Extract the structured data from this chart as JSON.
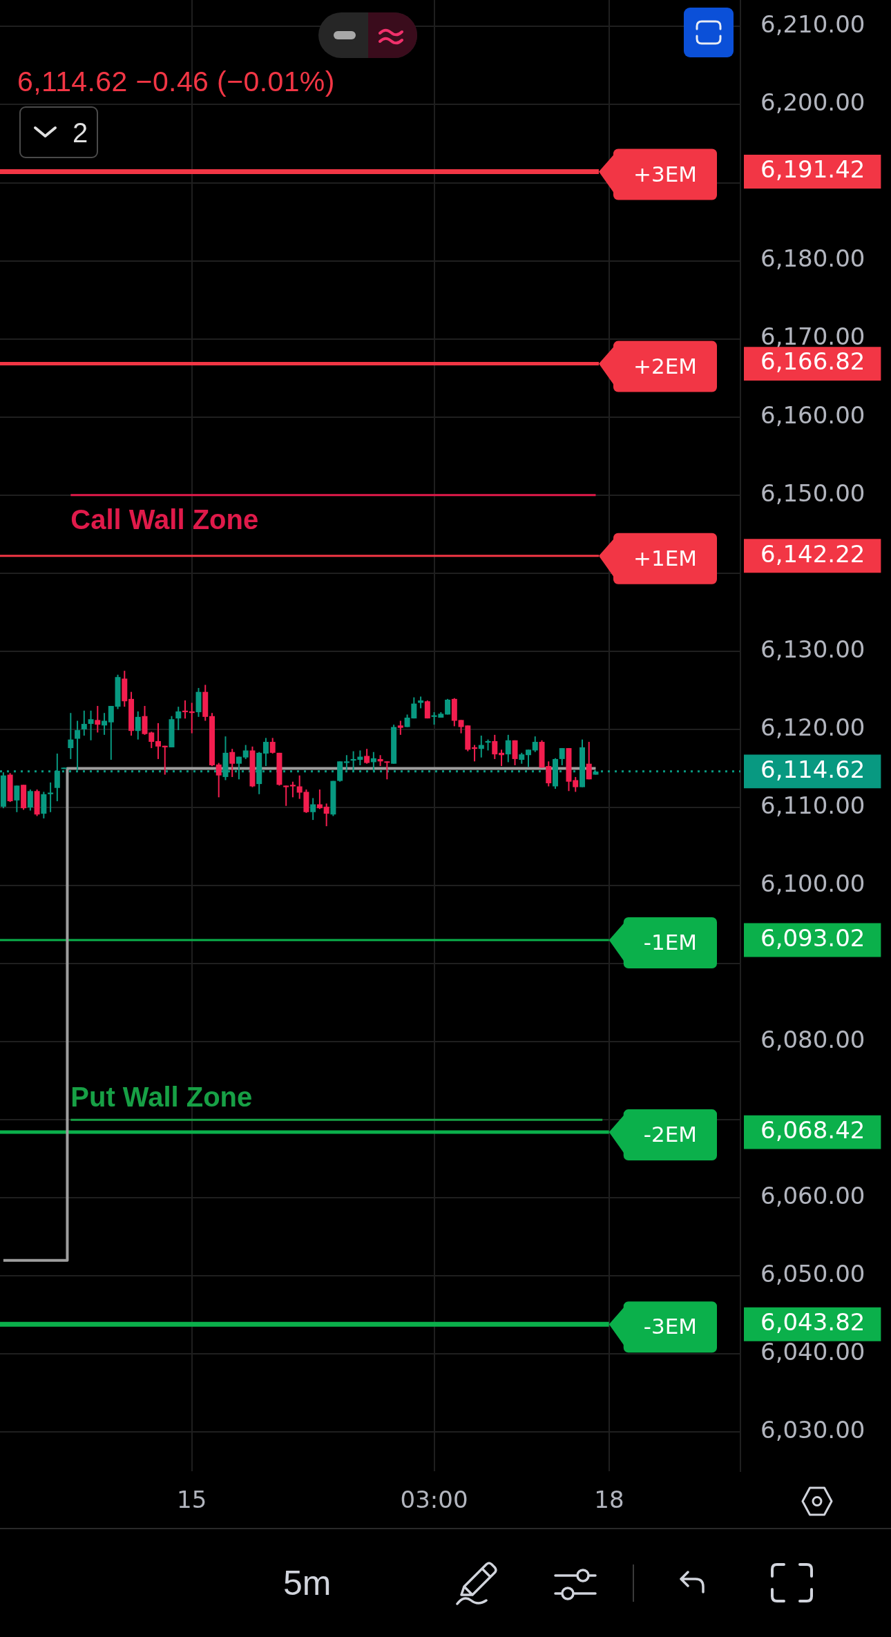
{
  "chart_data": {
    "type": "candlestick",
    "subtitle": "6,114.62 −0.46 (−0.01%)",
    "annotations": [
      "2",
      "5m"
    ],
    "categories": [
      null,
      null,
      null,
      null,
      null,
      null,
      null,
      null,
      null,
      null,
      null,
      null,
      null,
      null,
      null,
      null,
      null,
      null,
      null,
      null,
      null,
      null,
      null,
      null,
      null,
      null,
      null,
      null,
      "15",
      null,
      null,
      null,
      null,
      null,
      null,
      null,
      null,
      null,
      null,
      null,
      null,
      null,
      null,
      null,
      null,
      null,
      null,
      null,
      null,
      null,
      null,
      null,
      null,
      null,
      null,
      null,
      null,
      null,
      null,
      null,
      null,
      null,
      null,
      null,
      "03:00",
      null,
      null,
      null,
      null,
      null,
      null,
      null,
      null,
      null,
      null,
      null,
      null,
      null,
      null,
      null,
      null,
      null,
      null,
      null,
      null,
      null,
      null,
      null,
      null,
      null,
      "18",
      null,
      null,
      null,
      null,
      null,
      null,
      null,
      null,
      null,
      null,
      null,
      null,
      null,
      null,
      null,
      null,
      null,
      null,
      null
    ],
    "ohlc": [
      [
        6110.1,
        6114.5,
        6109.9,
        6114.1
      ],
      [
        6114.2,
        6114.4,
        6110.7,
        6110.8
      ],
      [
        6110.9,
        6112.8,
        6109.4,
        6112.8
      ],
      [
        6112.9,
        6112.9,
        6109.7,
        6109.9
      ],
      [
        6110.0,
        6112.3,
        6109.6,
        6112.1
      ],
      [
        6112.1,
        6112.3,
        6108.9,
        6109.1
      ],
      [
        6109.2,
        6112.0,
        6108.6,
        6111.7
      ],
      [
        6111.7,
        6113.2,
        6109.4,
        6111.9
      ],
      [
        6112.5,
        6116.9,
        6110.8,
        6114.7
      ],
      [
        6115.1,
        6115.1,
        6115.1,
        6115.1
      ],
      [
        6117.6,
        6122.1,
        6116.2,
        6118.7
      ],
      [
        6118.8,
        6121.1,
        6114.8,
        6119.9
      ],
      [
        6120.0,
        6122.4,
        6119.2,
        6120.7
      ],
      [
        6120.7,
        6122.4,
        6118.6,
        6121.3
      ],
      [
        6121.2,
        6123.0,
        6119.6,
        6120.6
      ],
      [
        6120.5,
        6122.1,
        6119.3,
        6121.1
      ],
      [
        6120.9,
        6123.0,
        6116.1,
        6123.0
      ],
      [
        6122.9,
        6127.0,
        6122.6,
        6126.7
      ],
      [
        6126.5,
        6127.5,
        6122.9,
        6123.6
      ],
      [
        6123.9,
        6124.8,
        6119.2,
        6119.8
      ],
      [
        6119.8,
        6122.3,
        6118.7,
        6121.6
      ],
      [
        6121.7,
        6123.0,
        6119.3,
        6119.4
      ],
      [
        6119.6,
        6119.7,
        6117.6,
        6118.4
      ],
      [
        6118.5,
        6120.8,
        6116.2,
        6117.8
      ],
      [
        6117.9,
        6117.9,
        6114.2,
        6117.7
      ],
      [
        6117.7,
        6121.7,
        6117.7,
        6121.3
      ],
      [
        6121.4,
        6122.9,
        6119.9,
        6122.3
      ],
      [
        6122.4,
        6123.7,
        6121.4,
        6122.2
      ],
      [
        6122.3,
        6123.4,
        6119.5,
        6122.1
      ],
      [
        6122.2,
        6125.3,
        6121.6,
        6124.8
      ],
      [
        6124.8,
        6125.7,
        6121.1,
        6121.6
      ],
      [
        6121.7,
        6122.1,
        6115.3,
        6115.4
      ],
      [
        6115.5,
        6115.7,
        6111.3,
        6114.1
      ],
      [
        6113.9,
        6119.1,
        6113.5,
        6117.0
      ],
      [
        6117.1,
        6117.5,
        6113.9,
        6115.6
      ],
      [
        6115.6,
        6116.5,
        6113.6,
        6116.5
      ],
      [
        6116.4,
        6118.0,
        6116.2,
        6117.3
      ],
      [
        6117.3,
        6117.8,
        6112.6,
        6112.7
      ],
      [
        6113.0,
        6117.1,
        6111.7,
        6117.0
      ],
      [
        6116.9,
        6118.9,
        6115.3,
        6118.4
      ],
      [
        6118.4,
        6118.9,
        6116.9,
        6117.0
      ],
      [
        6117.0,
        6117.0,
        6112.8,
        6112.9
      ],
      [
        6112.8,
        6112.8,
        6110.2,
        6112.6
      ],
      [
        6112.9,
        6113.3,
        6111.3,
        6112.7
      ],
      [
        6112.7,
        6114.1,
        6111.1,
        6111.9
      ],
      [
        6112.0,
        6112.3,
        6109.3,
        6109.4
      ],
      [
        6109.4,
        6111.2,
        6108.4,
        6110.4
      ],
      [
        6110.4,
        6112.3,
        6109.8,
        6109.9
      ],
      [
        6110.1,
        6110.5,
        6107.6,
        6109.2
      ],
      [
        6109.1,
        6113.4,
        6108.9,
        6113.4
      ],
      [
        6113.4,
        6115.9,
        6113.3,
        6115.9
      ],
      [
        6115.7,
        6116.7,
        6114.8,
        6115.9
      ],
      [
        6116.0,
        6117.2,
        6114.7,
        6116.2
      ],
      [
        6116.1,
        6117.3,
        6115.4,
        6116.5
      ],
      [
        6116.6,
        6117.5,
        6115.6,
        6115.7
      ],
      [
        6115.8,
        6117.1,
        6114.5,
        6116.3
      ],
      [
        6116.2,
        6116.7,
        6115.3,
        6115.9
      ],
      [
        6115.9,
        6115.9,
        6113.6,
        6115.8
      ],
      [
        6115.6,
        6120.6,
        6115.6,
        6120.3
      ],
      [
        6120.5,
        6121.1,
        6119.3,
        6120.2
      ],
      [
        6120.3,
        6121.9,
        6120.3,
        6121.5
      ],
      [
        6121.4,
        6124.1,
        6121.4,
        6123.3
      ],
      [
        6123.4,
        6124.2,
        6122.7,
        6123.7
      ],
      [
        6123.6,
        6123.7,
        6121.4,
        6121.4
      ],
      [
        6121.6,
        6122.2,
        6120.6,
        6121.8
      ],
      [
        6121.5,
        6122.2,
        6121.5,
        6122.0
      ],
      [
        6121.9,
        6123.9,
        6121.9,
        6123.8
      ],
      [
        6123.9,
        6124.0,
        6120.4,
        6121.1
      ],
      [
        6121.2,
        6121.2,
        6119.5,
        6120.3
      ],
      [
        6120.5,
        6120.5,
        6117.2,
        6117.4
      ],
      [
        6117.7,
        6118.0,
        6115.9,
        6117.5
      ],
      [
        6117.5,
        6119.2,
        6116.4,
        6118.0
      ],
      [
        6118.3,
        6118.7,
        6117.3,
        6118.5
      ],
      [
        6118.5,
        6119.3,
        6116.2,
        6116.8
      ],
      [
        6117.0,
        6117.4,
        6115.3,
        6116.7
      ],
      [
        6116.8,
        6119.3,
        6115.8,
        6118.6
      ],
      [
        6118.6,
        6118.6,
        6115.4,
        6116.2
      ],
      [
        6116.1,
        6117.0,
        6115.6,
        6116.8
      ],
      [
        6116.7,
        6117.4,
        6115.2,
        6117.4
      ],
      [
        6117.3,
        6119.1,
        6117.1,
        6118.4
      ],
      [
        6118.4,
        6118.6,
        6115.1,
        6115.1
      ],
      [
        6115.3,
        6115.9,
        6112.7,
        6113.1
      ],
      [
        6112.7,
        6116.3,
        6112.4,
        6116.2
      ],
      [
        6116.2,
        6117.6,
        6115.4,
        6117.6
      ],
      [
        6117.6,
        6117.6,
        6112.1,
        6113.3
      ],
      [
        6113.5,
        6113.9,
        6112.0,
        6112.6
      ],
      [
        6112.6,
        6118.7,
        6112.6,
        6117.7
      ],
      [
        6115.6,
        6118.4,
        6113.6,
        6113.6
      ],
      [
        6114.2,
        6114.6,
        6114.2,
        6114.6
      ],
      null,
      null,
      null,
      null,
      null,
      null,
      null,
      null,
      null,
      null,
      null,
      null,
      null,
      null,
      null,
      null,
      null,
      null,
      null,
      null,
      null
    ],
    "colors": [
      "#089981",
      "#f21e4f",
      "#089981",
      "#f21e4f",
      "#089981",
      "#f21e4f",
      "#089981",
      "#089981",
      "#089981",
      "#089981",
      "#089981",
      "#089981",
      "#089981",
      "#089981",
      "#f21e4f",
      "#089981",
      "#089981",
      "#089981",
      "#f21e4f",
      "#f21e4f",
      "#089981",
      "#f21e4f",
      "#f21e4f",
      "#f21e4f",
      "#f21e4f",
      "#089981",
      "#089981",
      "#f21e4f",
      "#f21e4f",
      "#089981",
      "#f21e4f",
      "#f21e4f",
      "#f21e4f",
      "#089981",
      "#f21e4f",
      "#089981",
      "#089981",
      "#f21e4f",
      "#089981",
      "#089981",
      "#f21e4f",
      "#f21e4f",
      "#f21e4f",
      "#f21e4f",
      "#f21e4f",
      "#f21e4f",
      "#089981",
      "#f21e4f",
      "#f21e4f",
      "#089981",
      "#089981",
      "#089981",
      "#089981",
      "#089981",
      "#f21e4f",
      "#089981",
      "#f21e4f",
      "#f21e4f",
      "#089981",
      "#f21e4f",
      "#089981",
      "#089981",
      "#089981",
      "#f21e4f",
      "#089981",
      "#089981",
      "#089981",
      "#f21e4f",
      "#f21e4f",
      "#f21e4f",
      "#f21e4f",
      "#089981",
      "#089981",
      "#f21e4f",
      "#f21e4f",
      "#089981",
      "#f21e4f",
      "#089981",
      "#089981",
      "#089981",
      "#f21e4f",
      "#f21e4f",
      "#089981",
      "#089981",
      "#f21e4f",
      "#f21e4f",
      "#089981",
      "#f21e4f",
      "#089981",
      null,
      null,
      null,
      null,
      null,
      null,
      null,
      null,
      null,
      null,
      null,
      null,
      null,
      null,
      null,
      null,
      null,
      null,
      null,
      null,
      null
    ],
    "series": [
      {
        "type": "step",
        "color": "#9e9e9e",
        "values": [
          6052,
          6052,
          6052,
          6052,
          6052,
          6052,
          6052,
          6052,
          6052,
          6052,
          6115,
          6115,
          6115,
          6115,
          6115,
          6115,
          6115,
          6115,
          6115,
          6115,
          6115,
          6115,
          6115,
          6115,
          6115,
          6115,
          6115,
          6115,
          6115,
          6115,
          6115,
          6115,
          6115,
          6115,
          6115,
          6115,
          6115,
          6115,
          6115,
          6115,
          6115,
          6115,
          6115,
          6115,
          6115,
          6115,
          6115,
          6115,
          6115,
          6115,
          6115,
          6115,
          6115,
          6115,
          6115,
          6115,
          6115,
          6115,
          6115,
          6115,
          6115,
          6115,
          6115,
          6115,
          6115,
          6115,
          6115,
          6115,
          6115,
          6115,
          6115,
          6115,
          6115,
          6115,
          6115,
          6115,
          6115,
          6115,
          6115,
          6115,
          6115,
          6115,
          6115,
          6115,
          6115,
          6115,
          6115,
          6115,
          6115,
          null,
          null,
          null,
          null,
          null,
          null,
          null,
          null,
          null,
          null,
          null,
          null,
          null,
          null,
          null,
          null,
          null,
          null,
          null,
          null,
          null
        ]
      },
      {
        "type": "line",
        "name": "Call Wall Zone",
        "color": "#e01a4a",
        "values": [
          null,
          null,
          null,
          null,
          null,
          null,
          null,
          null,
          null,
          null,
          6150,
          6150,
          6150,
          6150,
          6150,
          6150,
          6150,
          6150,
          6150,
          6150,
          6150,
          6150,
          6150,
          6150,
          6150,
          6150,
          6150,
          6150,
          6150,
          6150,
          6150,
          6150,
          6150,
          6150,
          6150,
          6150,
          6150,
          6150,
          6150,
          6150,
          6150,
          6150,
          6150,
          6150,
          6150,
          6150,
          6150,
          6150,
          6150,
          6150,
          6150,
          6150,
          6150,
          6150,
          6150,
          6150,
          6150,
          6150,
          6150,
          6150,
          6150,
          6150,
          6150,
          6150,
          6150,
          6150,
          6150,
          6150,
          6150,
          6150,
          6150,
          6150,
          6150,
          6150,
          6150,
          6150,
          6150,
          6150,
          6150,
          6150,
          6150,
          6150,
          6150,
          6150,
          6150,
          6150,
          6150,
          6150,
          6150,
          null,
          null,
          null,
          null,
          null,
          null,
          null,
          null,
          null,
          null,
          null,
          null,
          null,
          null,
          null,
          null,
          null,
          null,
          null,
          null,
          null
        ]
      },
      {
        "type": "line",
        "name": "Put Wall Zone",
        "color": "#17a045",
        "values": [
          null,
          null,
          null,
          null,
          null,
          null,
          null,
          null,
          null,
          null,
          6070,
          6070,
          6070,
          6070,
          6070,
          6070,
          6070,
          6070,
          6070,
          6070,
          6070,
          6070,
          6070,
          6070,
          6070,
          6070,
          6070,
          6070,
          6070,
          6070,
          6070,
          6070,
          6070,
          6070,
          6070,
          6070,
          6070,
          6070,
          6070,
          6070,
          6070,
          6070,
          6070,
          6070,
          6070,
          6070,
          6070,
          6070,
          6070,
          6070,
          6070,
          6070,
          6070,
          6070,
          6070,
          6070,
          6070,
          6070,
          6070,
          6070,
          6070,
          6070,
          6070,
          6070,
          6070,
          6070,
          6070,
          6070,
          6070,
          6070,
          6070,
          6070,
          6070,
          6070,
          6070,
          6070,
          6070,
          6070,
          6070,
          6070,
          6070,
          6070,
          6070,
          6070,
          6070,
          6070,
          6070,
          6070,
          6070,
          6070,
          null,
          null,
          null,
          null,
          null,
          null,
          null,
          null,
          null,
          null,
          null,
          null,
          null,
          null,
          null,
          null,
          null,
          null,
          null,
          null
        ]
      }
    ],
    "ref_lines": [
      {
        "axis": "y",
        "value": 6191.42,
        "label": "+3EM",
        "color": "#f23645"
      },
      {
        "axis": "y",
        "value": 6166.82,
        "label": "+2EM",
        "color": "#f23645"
      },
      {
        "axis": "y",
        "value": 6142.22,
        "label": "+1EM",
        "color": "#f23645"
      },
      {
        "axis": "y",
        "value": 6093.02,
        "label": "-1EM",
        "color": "#0bb04b"
      },
      {
        "axis": "y",
        "value": 6068.42,
        "label": "-2EM",
        "color": "#0bb04b"
      },
      {
        "axis": "y",
        "value": 6043.82,
        "label": "-3EM",
        "color": "#0bb04b"
      },
      {
        "axis": "y",
        "value": 6114.62,
        "color": "#089981",
        "line_style": "dotted"
      }
    ],
    "ylim": [
      6025,
      6213.4
    ],
    "yticks": [
      {
        "value": 6030,
        "label": "6,030.00"
      },
      {
        "value": 6040,
        "label": "6,040.00"
      },
      {
        "value": 6043.82,
        "label": "6,043.82"
      },
      {
        "value": 6050,
        "label": "6,050.00"
      },
      {
        "value": 6060,
        "label": "6,060.00"
      },
      {
        "value": 6068.42,
        "label": "6,068.42"
      },
      {
        "value": 6070,
        "label": null
      },
      {
        "value": 6080,
        "label": "6,080.00"
      },
      {
        "value": 6090,
        "label": null
      },
      {
        "value": 6093.02,
        "label": "6,093.02"
      },
      {
        "value": 6100,
        "label": "6,100.00"
      },
      {
        "value": 6110,
        "label": "6,110.00"
      },
      {
        "value": 6114.62,
        "label": "6,114.62"
      },
      {
        "value": 6120,
        "label": "6,120.00"
      },
      {
        "value": 6130,
        "label": "6,130.00"
      },
      {
        "value": 6140,
        "label": null
      },
      {
        "value": 6142.22,
        "label": "6,142.22"
      },
      {
        "value": 6150,
        "label": "6,150.00"
      },
      {
        "value": 6160,
        "label": "6,160.00"
      },
      {
        "value": 6166.82,
        "label": "6,166.82"
      },
      {
        "value": 6170,
        "label": "6,170.00"
      },
      {
        "value": 6180,
        "label": "6,180.00"
      },
      {
        "value": 6190,
        "label": null
      },
      {
        "value": 6191.42,
        "label": "6,191.42"
      },
      {
        "value": 6200,
        "label": "6,200.00"
      },
      {
        "value": 6210,
        "label": "6,210.00"
      }
    ],
    "grid": true
  }
}
